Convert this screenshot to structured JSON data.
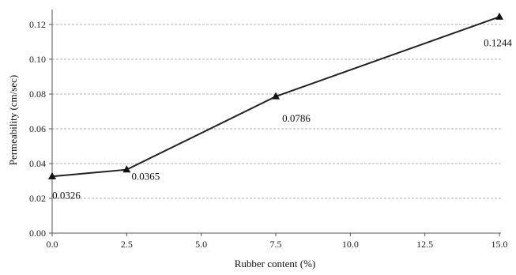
{
  "chart_data": {
    "type": "line",
    "title": "",
    "xlabel": "Rubber content (%)",
    "ylabel": "Permeability  (cm/sec)",
    "x": [
      0.0,
      2.5,
      7.5,
      15.0
    ],
    "series": [
      {
        "values": [
          0.0326,
          0.0365,
          0.0786,
          0.1244
        ],
        "data_labels": [
          "0.0326",
          "0.0365",
          "0.0786",
          "0.1244"
        ],
        "marker": "triangle",
        "color": "#222222"
      }
    ],
    "xlim": [
      0.0,
      15.0
    ],
    "ylim": [
      0.0,
      0.13
    ],
    "xticks": [
      "0.0",
      "2.5",
      "5.0",
      "7.5",
      "10.0",
      "12.5",
      "15.0"
    ],
    "yticks": [
      "0.00",
      "0.02",
      "0.04",
      "0.06",
      "0.08",
      "0.10",
      "0.12"
    ],
    "grid": "horizontal dashed",
    "legend": "none"
  }
}
